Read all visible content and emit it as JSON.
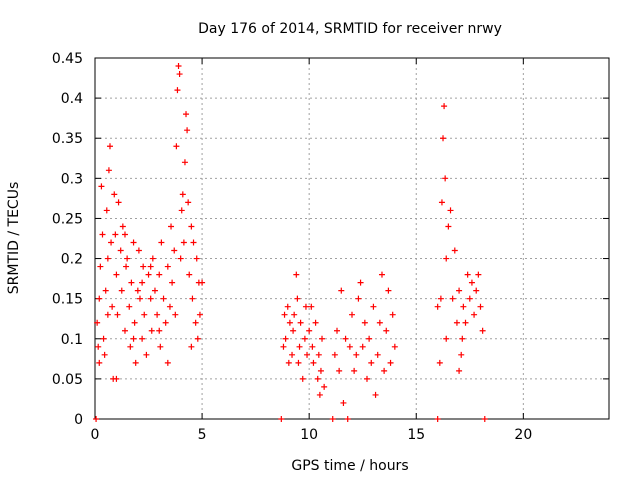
{
  "chart_data": {
    "type": "scatter",
    "title": "Day 176 of 2014, SRMTID for receiver nrwy",
    "xlabel": "GPS time / hours",
    "ylabel": "SRMTID / TECUs",
    "xlim": [
      0,
      24
    ],
    "ylim": [
      0,
      0.45
    ],
    "xticks": [
      0,
      5,
      10,
      15,
      20
    ],
    "xtick_labels": [
      "0",
      "5",
      "10",
      "15",
      "20"
    ],
    "yticks": [
      0,
      0.05,
      0.1,
      0.15,
      0.2,
      0.25,
      0.3,
      0.35,
      0.4,
      0.45
    ],
    "ytick_labels": [
      "0",
      "0.05",
      "0.1",
      "0.15",
      "0.2",
      "0.25",
      "0.3",
      "0.35",
      "0.4",
      "0.45"
    ],
    "grid": true,
    "marker": "+",
    "series": [
      {
        "name": "SRMTID",
        "color": "#ff0000",
        "points": [
          [
            0.05,
            0.0
          ],
          [
            0.1,
            0.12
          ],
          [
            0.15,
            0.09
          ],
          [
            0.2,
            0.15
          ],
          [
            0.25,
            0.19
          ],
          [
            0.3,
            0.29
          ],
          [
            0.35,
            0.23
          ],
          [
            0.4,
            0.1
          ],
          [
            0.45,
            0.08
          ],
          [
            0.5,
            0.16
          ],
          [
            0.55,
            0.26
          ],
          [
            0.6,
            0.2
          ],
          [
            0.65,
            0.31
          ],
          [
            0.7,
            0.34
          ],
          [
            0.75,
            0.22
          ],
          [
            0.8,
            0.14
          ],
          [
            0.85,
            0.05
          ],
          [
            0.9,
            0.28
          ],
          [
            0.95,
            0.23
          ],
          [
            1.0,
            0.18
          ],
          [
            1.05,
            0.13
          ],
          [
            1.1,
            0.27
          ],
          [
            1.2,
            0.21
          ],
          [
            1.25,
            0.16
          ],
          [
            1.3,
            0.24
          ],
          [
            1.4,
            0.11
          ],
          [
            1.45,
            0.19
          ],
          [
            1.5,
            0.2
          ],
          [
            1.6,
            0.14
          ],
          [
            1.65,
            0.09
          ],
          [
            1.7,
            0.17
          ],
          [
            1.8,
            0.22
          ],
          [
            1.85,
            0.12
          ],
          [
            1.9,
            0.07
          ],
          [
            2.0,
            0.16
          ],
          [
            2.05,
            0.21
          ],
          [
            2.1,
            0.15
          ],
          [
            2.2,
            0.1
          ],
          [
            2.25,
            0.19
          ],
          [
            2.3,
            0.13
          ],
          [
            2.4,
            0.08
          ],
          [
            2.5,
            0.18
          ],
          [
            2.6,
            0.15
          ],
          [
            2.65,
            0.11
          ],
          [
            2.7,
            0.2
          ],
          [
            2.8,
            0.16
          ],
          [
            2.9,
            0.13
          ],
          [
            3.0,
            0.18
          ],
          [
            3.05,
            0.09
          ],
          [
            3.1,
            0.22
          ],
          [
            3.2,
            0.15
          ],
          [
            3.3,
            0.12
          ],
          [
            3.4,
            0.19
          ],
          [
            3.5,
            0.14
          ],
          [
            3.55,
            0.24
          ],
          [
            3.6,
            0.17
          ],
          [
            3.7,
            0.21
          ],
          [
            3.75,
            0.13
          ],
          [
            3.8,
            0.34
          ],
          [
            3.85,
            0.41
          ],
          [
            3.9,
            0.44
          ],
          [
            3.95,
            0.43
          ],
          [
            4.0,
            0.2
          ],
          [
            4.05,
            0.26
          ],
          [
            4.1,
            0.28
          ],
          [
            4.15,
            0.22
          ],
          [
            4.2,
            0.32
          ],
          [
            4.25,
            0.38
          ],
          [
            4.3,
            0.36
          ],
          [
            4.35,
            0.27
          ],
          [
            4.4,
            0.18
          ],
          [
            4.5,
            0.24
          ],
          [
            4.55,
            0.15
          ],
          [
            4.6,
            0.22
          ],
          [
            4.7,
            0.12
          ],
          [
            4.75,
            0.2
          ],
          [
            4.8,
            0.1
          ],
          [
            4.85,
            0.17
          ],
          [
            4.9,
            0.13
          ],
          [
            5.0,
            0.17
          ],
          [
            0.2,
            0.07
          ],
          [
            0.6,
            0.13
          ],
          [
            1.0,
            0.05
          ],
          [
            1.4,
            0.23
          ],
          [
            1.8,
            0.1
          ],
          [
            2.2,
            0.17
          ],
          [
            2.6,
            0.19
          ],
          [
            3.0,
            0.11
          ],
          [
            3.4,
            0.07
          ],
          [
            4.5,
            0.09
          ],
          [
            8.7,
            0.0
          ],
          [
            8.8,
            0.09
          ],
          [
            8.85,
            0.13
          ],
          [
            8.9,
            0.1
          ],
          [
            9.0,
            0.14
          ],
          [
            9.05,
            0.07
          ],
          [
            9.1,
            0.12
          ],
          [
            9.2,
            0.08
          ],
          [
            9.25,
            0.11
          ],
          [
            9.3,
            0.13
          ],
          [
            9.4,
            0.18
          ],
          [
            9.45,
            0.15
          ],
          [
            9.5,
            0.07
          ],
          [
            9.55,
            0.09
          ],
          [
            9.6,
            0.12
          ],
          [
            9.7,
            0.05
          ],
          [
            9.8,
            0.1
          ],
          [
            9.85,
            0.14
          ],
          [
            9.9,
            0.08
          ],
          [
            10.0,
            0.11
          ],
          [
            10.1,
            0.14
          ],
          [
            10.15,
            0.09
          ],
          [
            10.2,
            0.07
          ],
          [
            10.3,
            0.12
          ],
          [
            10.4,
            0.05
          ],
          [
            10.45,
            0.08
          ],
          [
            10.5,
            0.03
          ],
          [
            10.55,
            0.06
          ],
          [
            10.6,
            0.1
          ],
          [
            10.7,
            0.04
          ],
          [
            11.1,
            0.0
          ],
          [
            11.2,
            0.08
          ],
          [
            11.3,
            0.11
          ],
          [
            11.4,
            0.06
          ],
          [
            11.5,
            0.16
          ],
          [
            11.6,
            0.02
          ],
          [
            11.7,
            0.1
          ],
          [
            11.8,
            0.0
          ],
          [
            11.9,
            0.09
          ],
          [
            12.0,
            0.13
          ],
          [
            12.1,
            0.06
          ],
          [
            12.2,
            0.08
          ],
          [
            12.3,
            0.15
          ],
          [
            12.4,
            0.17
          ],
          [
            12.5,
            0.09
          ],
          [
            12.6,
            0.12
          ],
          [
            12.7,
            0.05
          ],
          [
            12.8,
            0.1
          ],
          [
            12.9,
            0.07
          ],
          [
            13.0,
            0.14
          ],
          [
            13.1,
            0.03
          ],
          [
            13.2,
            0.08
          ],
          [
            13.3,
            0.12
          ],
          [
            13.4,
            0.18
          ],
          [
            13.5,
            0.06
          ],
          [
            13.6,
            0.11
          ],
          [
            13.7,
            0.16
          ],
          [
            13.8,
            0.07
          ],
          [
            13.9,
            0.13
          ],
          [
            14.0,
            0.09
          ],
          [
            16.0,
            0.0
          ],
          [
            16.1,
            0.07
          ],
          [
            16.15,
            0.15
          ],
          [
            16.2,
            0.27
          ],
          [
            16.25,
            0.35
          ],
          [
            16.3,
            0.39
          ],
          [
            16.35,
            0.3
          ],
          [
            16.4,
            0.2
          ],
          [
            16.5,
            0.24
          ],
          [
            16.6,
            0.26
          ],
          [
            16.7,
            0.15
          ],
          [
            16.8,
            0.21
          ],
          [
            16.9,
            0.12
          ],
          [
            17.0,
            0.16
          ],
          [
            17.1,
            0.08
          ],
          [
            17.15,
            0.1
          ],
          [
            17.2,
            0.14
          ],
          [
            17.3,
            0.12
          ],
          [
            17.4,
            0.18
          ],
          [
            17.5,
            0.15
          ],
          [
            17.6,
            0.17
          ],
          [
            17.7,
            0.13
          ],
          [
            17.8,
            0.16
          ],
          [
            17.9,
            0.18
          ],
          [
            18.0,
            0.14
          ],
          [
            18.1,
            0.11
          ],
          [
            18.2,
            0.0
          ],
          [
            16.0,
            0.14
          ],
          [
            16.4,
            0.1
          ],
          [
            17.0,
            0.06
          ]
        ]
      }
    ]
  }
}
